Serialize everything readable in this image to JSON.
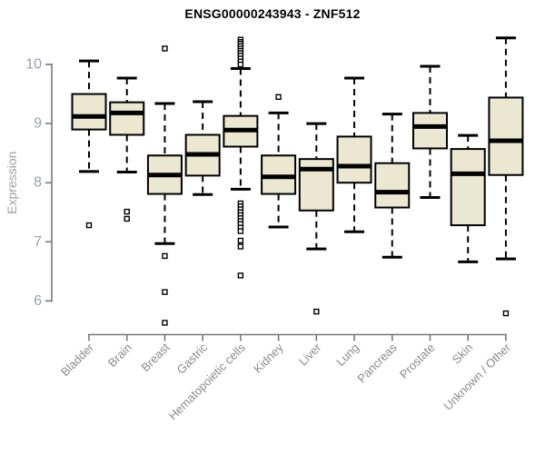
{
  "title": "ENSG00000243943 - ZNF512",
  "colors": {
    "box_fill": "#ece7d0",
    "box_stroke": "#000000",
    "median_color": "#000000",
    "whisker_color": "#000000",
    "outlier_stroke": "#000000",
    "axis_color": "#777777",
    "y_tick_label_color": "#95a0ad",
    "x_label_color": "#8a8a8a",
    "ylabel_color": "#a0a0a0",
    "title_color": "#000000"
  },
  "chart_data": {
    "type": "boxplot",
    "title": "ENSG00000243943 - ZNF512",
    "xlabel": "",
    "ylabel": "Expression",
    "ylim": [
      5.5,
      10.6
    ],
    "y_ticks": [
      6,
      7,
      8,
      9,
      10
    ],
    "grid": false,
    "legend": false,
    "categories": [
      "Bladder",
      "Brain",
      "Breast",
      "Gastric",
      "Hematopoietic cells",
      "Kidney",
      "Liver",
      "Lung",
      "Pancreas",
      "Prostate",
      "Skin",
      "Unknown / Other"
    ],
    "series": [
      {
        "category": "Bladder",
        "whisker_low": 8.19,
        "q1": 8.9,
        "median": 9.12,
        "q3": 9.5,
        "whisker_high": 10.06,
        "outliers": [
          7.28
        ]
      },
      {
        "category": "Brain",
        "whisker_low": 8.18,
        "q1": 8.81,
        "median": 9.18,
        "q3": 9.36,
        "whisker_high": 9.77,
        "outliers": [
          7.51,
          7.39
        ]
      },
      {
        "category": "Breast",
        "whisker_low": 6.97,
        "q1": 7.81,
        "median": 8.13,
        "q3": 8.46,
        "whisker_high": 9.34,
        "outliers": [
          10.27,
          6.76,
          6.15,
          5.63
        ]
      },
      {
        "category": "Gastric",
        "whisker_low": 7.8,
        "q1": 8.12,
        "median": 8.48,
        "q3": 8.81,
        "whisker_high": 9.37,
        "outliers": []
      },
      {
        "category": "Hematopoietic cells",
        "whisker_low": 7.89,
        "q1": 8.61,
        "median": 8.89,
        "q3": 9.13,
        "whisker_high": 9.93,
        "outliers": [
          10.42,
          10.38,
          10.35,
          10.31,
          10.27,
          10.23,
          10.19,
          10.15,
          10.1,
          10.05,
          10.0,
          7.65,
          7.6,
          7.55,
          7.5,
          7.45,
          7.4,
          7.35,
          7.3,
          7.24,
          7.18,
          7.02,
          6.92,
          6.43
        ]
      },
      {
        "category": "Kidney",
        "whisker_low": 7.25,
        "q1": 7.81,
        "median": 8.1,
        "q3": 8.46,
        "whisker_high": 9.18,
        "outliers": [
          9.45
        ]
      },
      {
        "category": "Liver",
        "whisker_low": 6.88,
        "q1": 7.53,
        "median": 8.23,
        "q3": 8.4,
        "whisker_high": 9.0,
        "outliers": [
          5.82
        ]
      },
      {
        "category": "Lung",
        "whisker_low": 7.17,
        "q1": 8.0,
        "median": 8.28,
        "q3": 8.78,
        "whisker_high": 9.77,
        "outliers": []
      },
      {
        "category": "Pancreas",
        "whisker_low": 6.74,
        "q1": 7.58,
        "median": 7.84,
        "q3": 8.33,
        "whisker_high": 9.16,
        "outliers": []
      },
      {
        "category": "Prostate",
        "whisker_low": 7.75,
        "q1": 8.58,
        "median": 8.95,
        "q3": 9.18,
        "whisker_high": 9.97,
        "outliers": []
      },
      {
        "category": "Skin",
        "whisker_low": 6.66,
        "q1": 7.28,
        "median": 8.15,
        "q3": 8.57,
        "whisker_high": 8.8,
        "outliers": []
      },
      {
        "category": "Unknown / Other",
        "whisker_low": 6.71,
        "q1": 8.13,
        "median": 8.71,
        "q3": 9.44,
        "whisker_high": 10.45,
        "outliers": [
          5.79
        ]
      }
    ]
  }
}
